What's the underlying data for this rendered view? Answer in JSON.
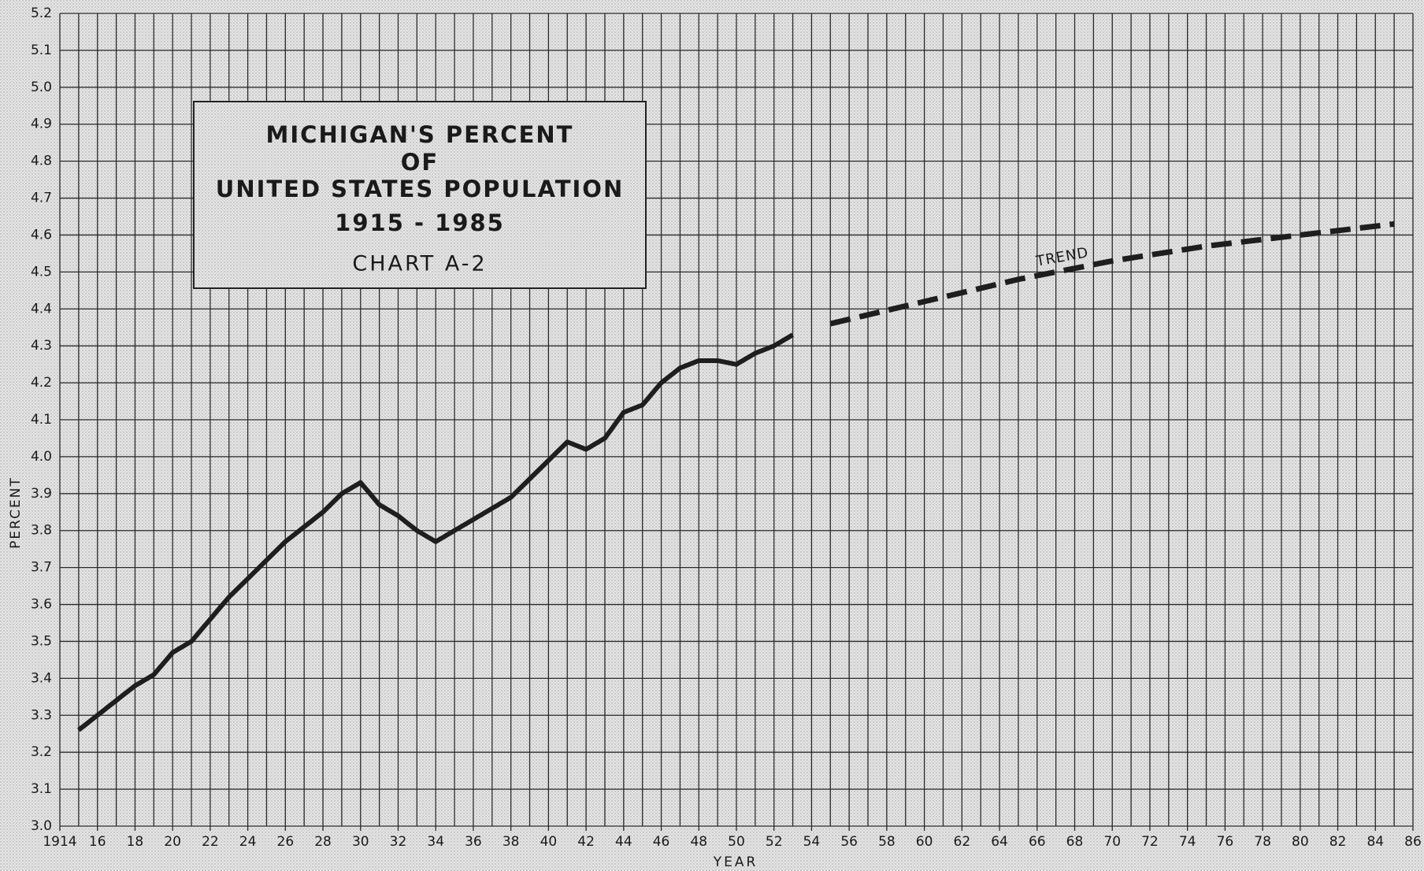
{
  "chart_data": {
    "type": "line",
    "title_lines": [
      "MICHIGAN'S PERCENT",
      "OF",
      "UNITED STATES POPULATION",
      "1915 - 1985"
    ],
    "subtitle": "CHART A-2",
    "x_label": "YEAR",
    "y_label": "PERCENT",
    "annotation": "TREND",
    "xlim": [
      1914,
      1986
    ],
    "ylim": [
      3.0,
      5.2
    ],
    "xticks": [
      {
        "value": 1914,
        "label": "1914"
      },
      {
        "value": 1916,
        "label": "16"
      },
      {
        "value": 1918,
        "label": "18"
      },
      {
        "value": 1920,
        "label": "20"
      },
      {
        "value": 1922,
        "label": "22"
      },
      {
        "value": 1924,
        "label": "24"
      },
      {
        "value": 1926,
        "label": "26"
      },
      {
        "value": 1928,
        "label": "28"
      },
      {
        "value": 1930,
        "label": "30"
      },
      {
        "value": 1932,
        "label": "32"
      },
      {
        "value": 1934,
        "label": "34"
      },
      {
        "value": 1936,
        "label": "36"
      },
      {
        "value": 1938,
        "label": "38"
      },
      {
        "value": 1940,
        "label": "40"
      },
      {
        "value": 1942,
        "label": "42"
      },
      {
        "value": 1944,
        "label": "44"
      },
      {
        "value": 1946,
        "label": "46"
      },
      {
        "value": 1948,
        "label": "48"
      },
      {
        "value": 1950,
        "label": "50"
      },
      {
        "value": 1952,
        "label": "52"
      },
      {
        "value": 1954,
        "label": "54"
      },
      {
        "value": 1956,
        "label": "56"
      },
      {
        "value": 1958,
        "label": "58"
      },
      {
        "value": 1960,
        "label": "60"
      },
      {
        "value": 1962,
        "label": "62"
      },
      {
        "value": 1964,
        "label": "64"
      },
      {
        "value": 1966,
        "label": "66"
      },
      {
        "value": 1968,
        "label": "68"
      },
      {
        "value": 1970,
        "label": "70"
      },
      {
        "value": 1972,
        "label": "72"
      },
      {
        "value": 1974,
        "label": "74"
      },
      {
        "value": 1976,
        "label": "76"
      },
      {
        "value": 1978,
        "label": "78"
      },
      {
        "value": 1980,
        "label": "80"
      },
      {
        "value": 1982,
        "label": "82"
      },
      {
        "value": 1984,
        "label": "84"
      },
      {
        "value": 1986,
        "label": "86"
      }
    ],
    "xgrid": [
      1914,
      1915,
      1916,
      1917,
      1918,
      1919,
      1920,
      1921,
      1922,
      1923,
      1924,
      1925,
      1926,
      1927,
      1928,
      1929,
      1930,
      1931,
      1932,
      1933,
      1934,
      1935,
      1936,
      1937,
      1938,
      1939,
      1940,
      1941,
      1942,
      1943,
      1944,
      1945,
      1946,
      1947,
      1948,
      1949,
      1950,
      1951,
      1952,
      1953,
      1954,
      1955,
      1956,
      1957,
      1958,
      1959,
      1960,
      1961,
      1962,
      1963,
      1964,
      1965,
      1966,
      1967,
      1968,
      1969,
      1970,
      1971,
      1972,
      1973,
      1974,
      1975,
      1976,
      1977,
      1978,
      1979,
      1980,
      1981,
      1982,
      1983,
      1984,
      1985,
      1986
    ],
    "yticks": [
      {
        "value": 3.0,
        "label": "3.0"
      },
      3.1,
      3.2,
      3.3,
      3.4,
      3.5,
      3.6,
      3.7,
      3.8,
      3.9,
      {
        "value": 4.0,
        "label": "4.0"
      },
      4.1,
      4.2,
      4.3,
      4.4,
      4.5,
      4.6,
      4.7,
      4.8,
      4.9,
      {
        "value": 5.0,
        "label": "5.0"
      },
      5.1,
      5.2
    ],
    "grid": true,
    "series": [
      {
        "color": "#1e1e1e",
        "dashed": false,
        "x": [
          1915,
          1916,
          1917,
          1918,
          1919,
          1920,
          1921,
          1922,
          1923,
          1924,
          1925,
          1926,
          1927,
          1928,
          1929,
          1930,
          1931,
          1932,
          1933,
          1934,
          1935,
          1936,
          1937,
          1938,
          1939,
          1940,
          1941,
          1942,
          1943,
          1944,
          1945,
          1946,
          1947,
          1948,
          1949,
          1950,
          1951,
          1952,
          1953
        ],
        "values": [
          3.26,
          3.3,
          3.34,
          3.38,
          3.41,
          3.47,
          3.5,
          3.56,
          3.62,
          3.67,
          3.72,
          3.77,
          3.81,
          3.85,
          3.9,
          3.93,
          3.87,
          3.84,
          3.8,
          3.77,
          3.8,
          3.83,
          3.86,
          3.89,
          3.94,
          3.99,
          4.04,
          4.02,
          4.05,
          4.12,
          4.14,
          4.2,
          4.24,
          4.26,
          4.26,
          4.25,
          4.28,
          4.3,
          4.33
        ]
      },
      {
        "color": "#1e1e1e",
        "dashed": true,
        "x": [
          1955,
          1960,
          1965,
          1970,
          1975,
          1980,
          1985
        ],
        "values": [
          4.36,
          4.42,
          4.48,
          4.53,
          4.57,
          4.6,
          4.63
        ]
      }
    ]
  }
}
